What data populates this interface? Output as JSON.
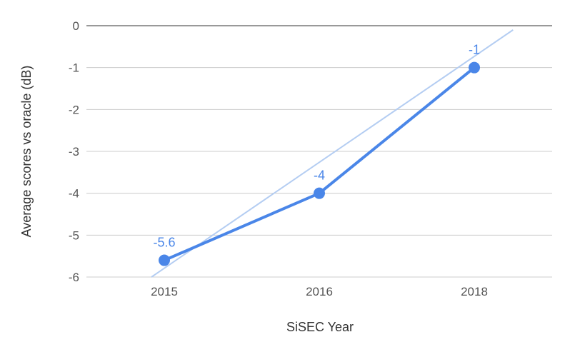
{
  "chart_data": {
    "type": "line",
    "xlabel": "SiSEC Year",
    "ylabel": "Average scores vs oracle (dB)",
    "categories": [
      "2015",
      "2016",
      "2018"
    ],
    "series": [
      {
        "values": [
          -5.6,
          -4,
          -1
        ],
        "data_labels": [
          "-5.6",
          "-4",
          "-1"
        ],
        "color": "#4a86e8"
      }
    ],
    "trendline": {
      "color": "#b4cdf2",
      "from": [
        -6.0,
        2015
      ],
      "to": [
        -0.1,
        2018.5
      ]
    },
    "ylim": [
      -6,
      0
    ],
    "yticks": [
      "0",
      "-1",
      "-2",
      "-3",
      "-4",
      "-5",
      "-6"
    ],
    "grid": true,
    "legend": "none",
    "colors": {
      "line": "#4a86e8",
      "trend": "#b4cdf2",
      "grid": "#cccccc",
      "zero_line": "#333333"
    }
  }
}
